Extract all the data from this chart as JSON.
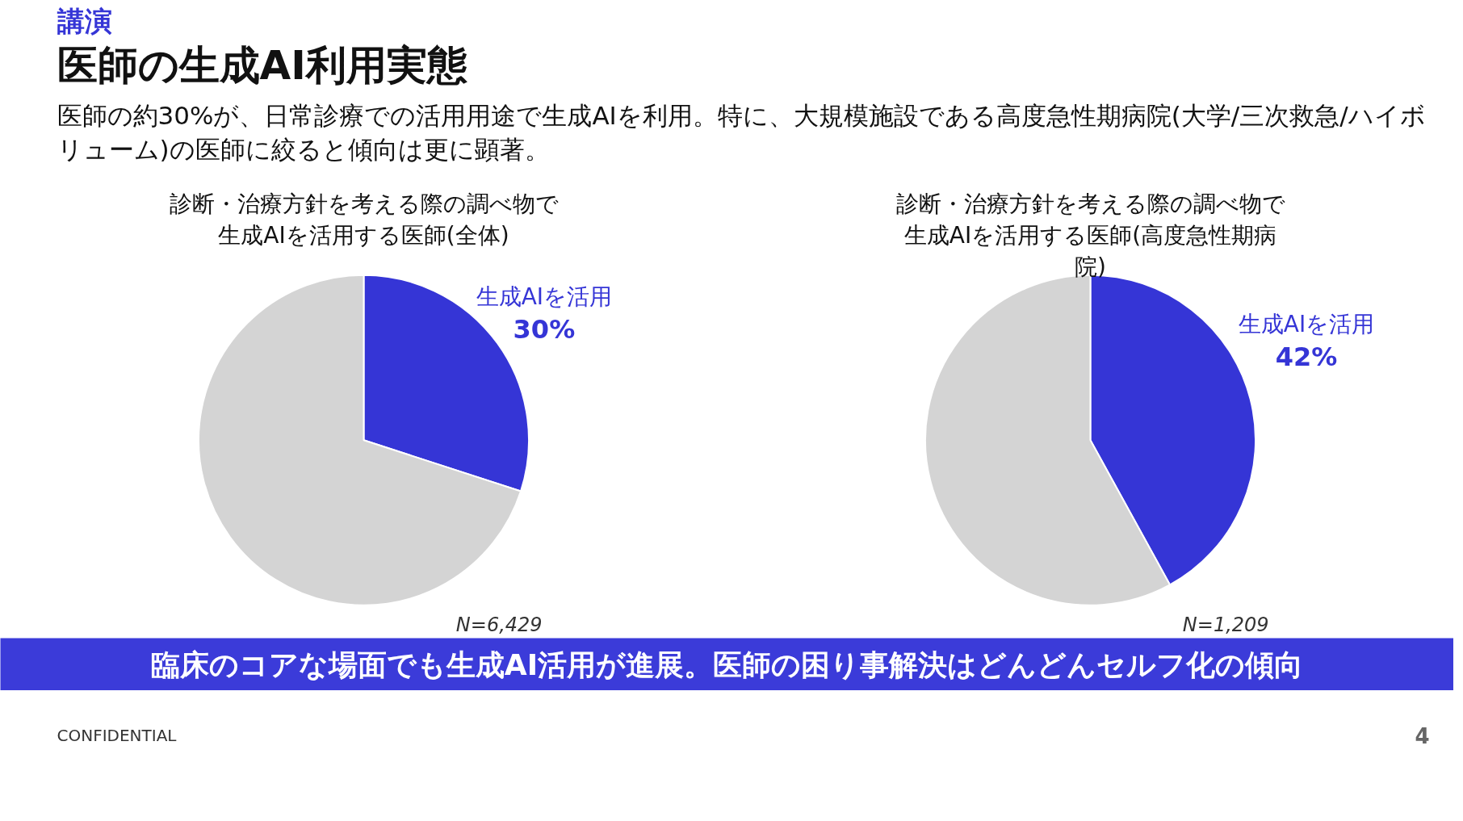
{
  "chart_data": [
    {
      "type": "other",
      "title": "医師の生成AI利用実態",
      "subtitle": "医師の約30%が、日常診療での活用用途で生成AIを利用。特に、大規模施設である高度急性期病院(大学/三次救急/ハイボリューム)の医師に絞ると傾向は更に顕著。",
      "annotations": [
        "講演"
      ]
    },
    {
      "type": "pie",
      "title": "診断・治療方針を考える際の調べ物で生成AIを活用する医師(全体)",
      "categories": [
        "生成AIを活用",
        null
      ],
      "values": [
        30,
        70
      ],
      "colors": [
        "#3535d6",
        "#d4d4d4"
      ],
      "value_labels": [
        "30%",
        null
      ],
      "annotations": [
        "N=6,429"
      ]
    },
    {
      "type": "pie",
      "title": "診断・治療方針を考える際の調べ物で生成AIを活用する医師(高度急性期病院)",
      "categories": [
        "生成AIを活用",
        null
      ],
      "values": [
        42,
        58
      ],
      "colors": [
        "#3535d6",
        "#d4d4d4"
      ],
      "value_labels": [
        "42%",
        null
      ],
      "annotations": [
        "N=1,209"
      ]
    },
    {
      "type": "other",
      "annotations": [
        "臨床のコアな場面でも生成AI活用が進展。医師の困り事解決はどんどんセルフ化の傾向",
        "CONFIDENTIAL",
        "4"
      ]
    }
  ]
}
